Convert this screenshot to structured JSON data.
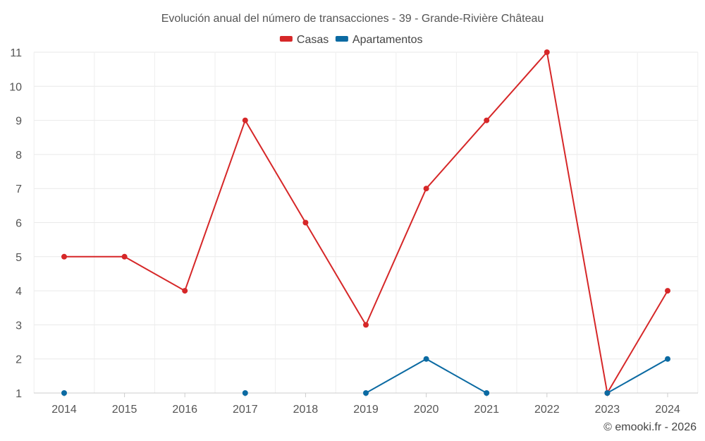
{
  "chart_data": {
    "type": "line",
    "title": "Evolución anual del número de transacciones - 39 - Grande-Rivière Château",
    "categories": [
      "2014",
      "2015",
      "2016",
      "2017",
      "2018",
      "2019",
      "2020",
      "2021",
      "2022",
      "2023",
      "2024"
    ],
    "ylim": [
      1,
      11
    ],
    "yticks": [
      1,
      2,
      3,
      4,
      5,
      6,
      7,
      8,
      9,
      10,
      11
    ],
    "grid": true,
    "legend_position": "top-center",
    "series": [
      {
        "name": "Casas",
        "color": "#d62728",
        "values": [
          5,
          5,
          4,
          9,
          6,
          3,
          7,
          9,
          11,
          1,
          4
        ]
      },
      {
        "name": "Apartamentos",
        "color": "#0b6aa2",
        "values": [
          1,
          null,
          null,
          1,
          null,
          1,
          2,
          1,
          null,
          1,
          2
        ]
      }
    ],
    "footer": "© emooki.fr - 2026"
  }
}
